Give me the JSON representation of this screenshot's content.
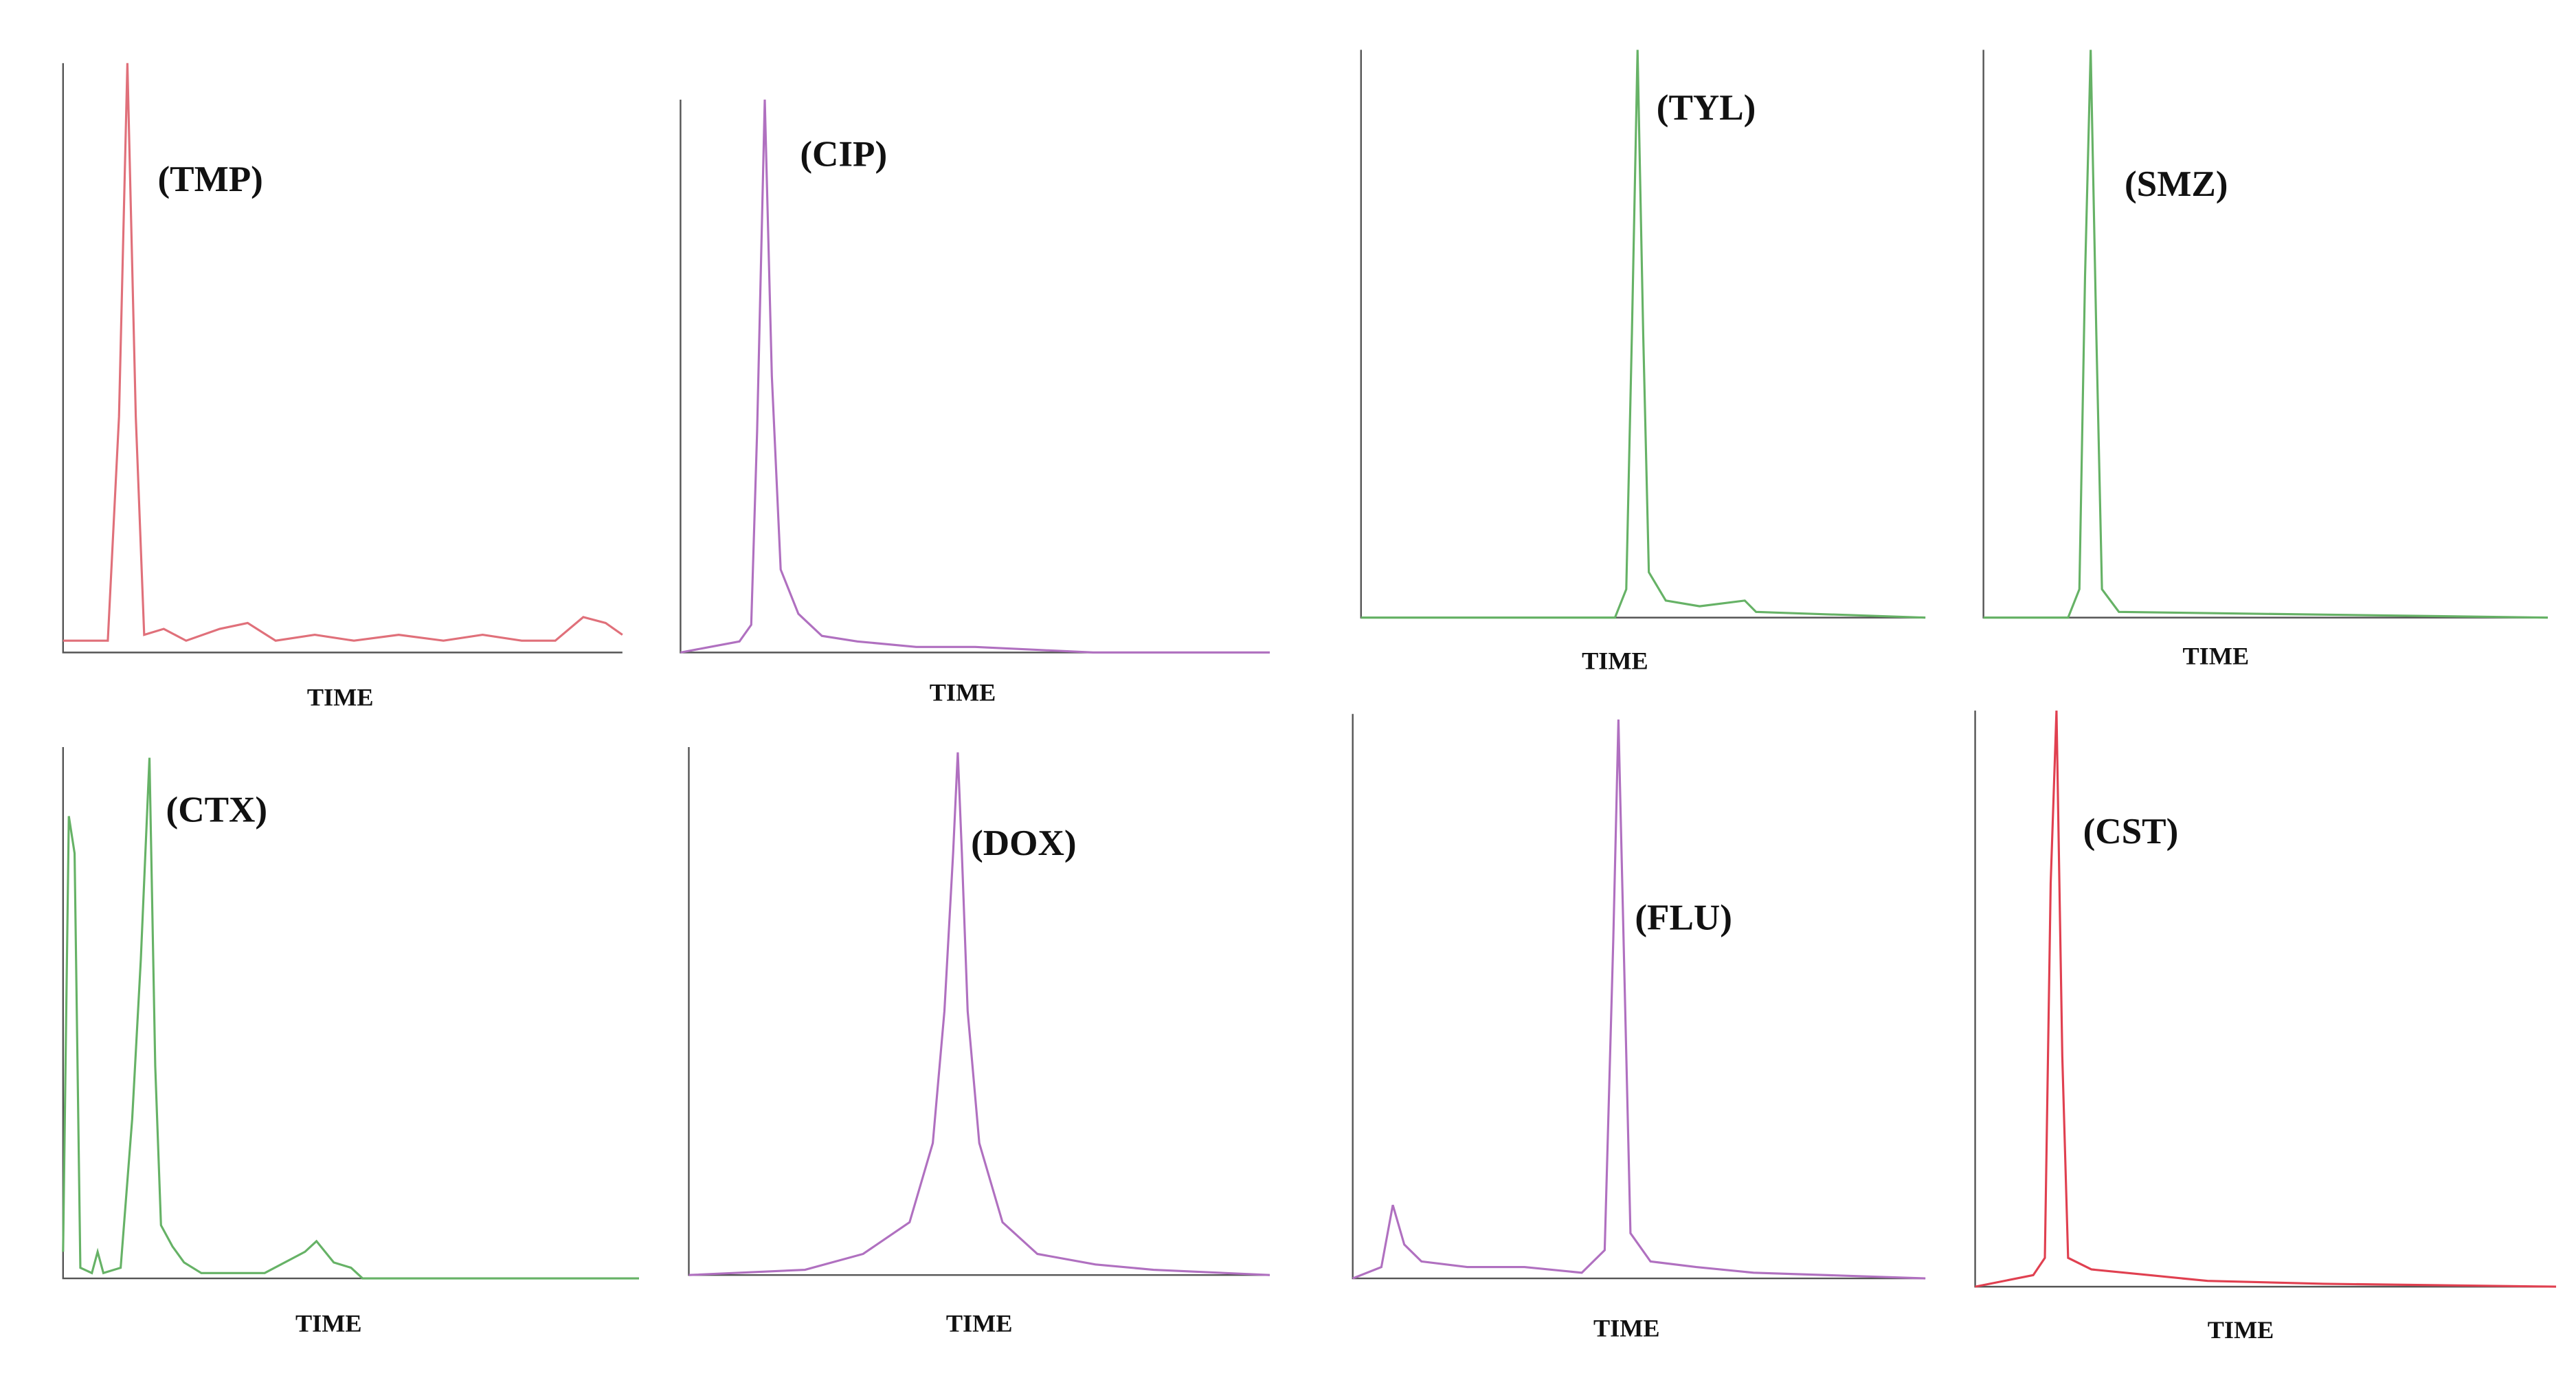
{
  "chart_data": [
    {
      "type": "line",
      "title": "(TMP)",
      "x_label": "TIME",
      "color": "#e0707a",
      "xlim": [
        0,
        100
      ],
      "ylim": [
        0,
        100
      ],
      "x": [
        0,
        5,
        8,
        10,
        11.5,
        13,
        14.5,
        18,
        22,
        28,
        33,
        38,
        45,
        52,
        60,
        68,
        75,
        82,
        88,
        93,
        97,
        100
      ],
      "values": [
        2,
        2,
        2,
        40,
        100,
        40,
        3,
        4,
        2,
        4,
        5,
        2,
        3,
        2,
        3,
        2,
        3,
        2,
        2,
        6,
        5,
        3
      ]
    },
    {
      "type": "line",
      "title": "(CIP)",
      "x_label": "TIME",
      "color": "#b070c0",
      "xlim": [
        0,
        100
      ],
      "ylim": [
        0,
        100
      ],
      "x": [
        0,
        5,
        10,
        12,
        13,
        14.3,
        15.5,
        17,
        20,
        24,
        30,
        40,
        50,
        60,
        70,
        100
      ],
      "values": [
        0,
        1,
        2,
        5,
        40,
        100,
        50,
        15,
        7,
        3,
        2,
        1,
        1,
        0.5,
        0,
        0
      ]
    },
    {
      "type": "line",
      "title": "(TYL)",
      "x_label": "TIME",
      "color": "#66b266",
      "xlim": [
        0,
        100
      ],
      "ylim": [
        0,
        100
      ],
      "x": [
        0,
        45,
        47,
        48,
        49,
        50,
        51,
        54,
        60,
        68,
        70,
        100
      ],
      "values": [
        0,
        0,
        5,
        50,
        100,
        50,
        8,
        3,
        2,
        3,
        1,
        0
      ]
    },
    {
      "type": "line",
      "title": "(SMZ)",
      "x_label": "TIME",
      "color": "#66b266",
      "xlim": [
        0,
        100
      ],
      "ylim": [
        0,
        100
      ],
      "x": [
        0,
        15,
        17,
        18,
        19,
        20,
        21,
        24,
        100
      ],
      "values": [
        0,
        0,
        5,
        60,
        100,
        50,
        5,
        1,
        0
      ]
    },
    {
      "type": "line",
      "title": "(CTX)",
      "x_label": "TIME",
      "color": "#66b266",
      "xlim": [
        0,
        100
      ],
      "ylim": [
        0,
        100
      ],
      "x": [
        0,
        1,
        2,
        3,
        5,
        6,
        7,
        10,
        12,
        13.5,
        15,
        16,
        17,
        19,
        21,
        24,
        35,
        42,
        44,
        47,
        50,
        52,
        100
      ],
      "values": [
        5,
        87,
        80,
        2,
        1,
        5,
        1,
        2,
        30,
        60,
        98,
        40,
        10,
        6,
        3,
        1,
        1,
        5,
        7,
        3,
        2,
        0,
        0
      ]
    },
    {
      "type": "line",
      "title": "(DOX)",
      "x_label": "TIME",
      "color": "#b070c0",
      "xlim": [
        0,
        100
      ],
      "ylim": [
        0,
        100
      ],
      "x": [
        0,
        20,
        30,
        38,
        42,
        44,
        45.5,
        46.3,
        47,
        48,
        50,
        54,
        60,
        70,
        80,
        100
      ],
      "values": [
        0,
        1,
        4,
        10,
        25,
        50,
        80,
        99,
        80,
        50,
        25,
        10,
        4,
        2,
        1,
        0
      ]
    },
    {
      "type": "line",
      "title": "(FLU)",
      "x_label": "TIME",
      "color": "#b070c0",
      "xlim": [
        0,
        100
      ],
      "ylim": [
        0,
        100
      ],
      "x": [
        0,
        5,
        7,
        9,
        12,
        20,
        30,
        40,
        44,
        45.5,
        46.4,
        47.3,
        48.5,
        52,
        60,
        70,
        100
      ],
      "values": [
        0,
        2,
        13,
        6,
        3,
        2,
        2,
        1,
        5,
        60,
        99,
        60,
        8,
        3,
        2,
        1,
        0
      ]
    },
    {
      "type": "line",
      "title": "(CST)",
      "x_label": "TIME",
      "color": "#e04050",
      "xlim": [
        0,
        100
      ],
      "ylim": [
        0,
        100
      ],
      "x": [
        0,
        5,
        10,
        12,
        13,
        14,
        15,
        16,
        20,
        30,
        40,
        60,
        100
      ],
      "values": [
        0,
        1,
        2,
        5,
        70,
        100,
        40,
        5,
        3,
        2,
        1,
        0.5,
        0
      ]
    }
  ]
}
